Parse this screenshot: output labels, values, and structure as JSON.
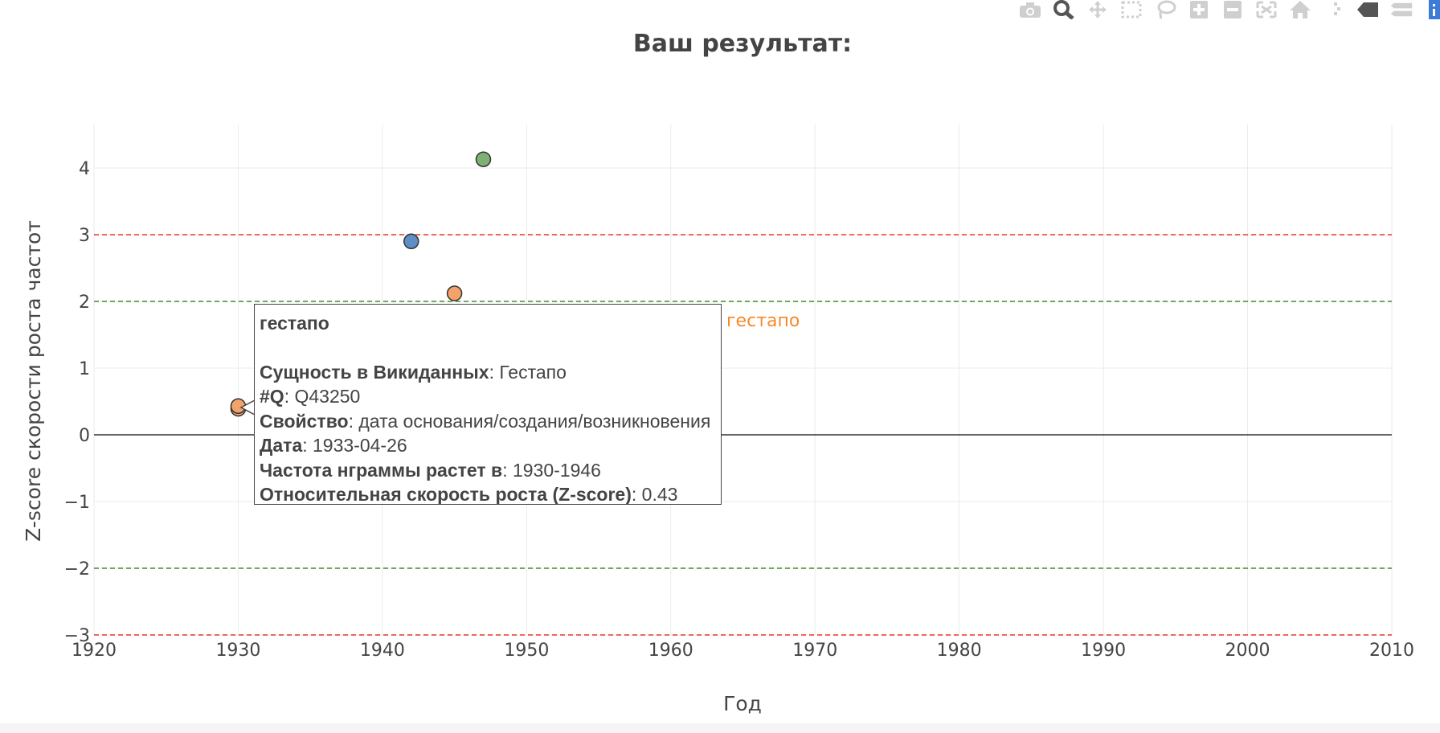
{
  "chart_data": {
    "type": "scatter",
    "title": "Ваш результат:",
    "xlabel": "Год",
    "ylabel": "Z-score скорости роста частот",
    "xlim": [
      1920,
      2010
    ],
    "ylim": [
      -3,
      4.6
    ],
    "x_ticks": [
      "1920",
      "1930",
      "1940",
      "1950",
      "1960",
      "1970",
      "1980",
      "1990",
      "2000",
      "2010"
    ],
    "y_ticks": [
      "4",
      "3",
      "2",
      "1",
      "0",
      "−1",
      "−2",
      "−3"
    ],
    "grid": true,
    "reference_lines": [
      {
        "y": 3,
        "color": "#e8352a",
        "style": "dashed"
      },
      {
        "y": 2,
        "color": "#3c8c2c",
        "style": "dashed"
      },
      {
        "y": 0,
        "color": "#333333",
        "style": "solid"
      },
      {
        "y": -2,
        "color": "#3c8c2c",
        "style": "dashed"
      },
      {
        "y": -3,
        "color": "#e8352a",
        "style": "dashed"
      }
    ],
    "points": [
      {
        "x": 1947,
        "y": 4.13,
        "color": "#7fb174"
      },
      {
        "x": 1942,
        "y": 2.9,
        "color": "#5f8ec5"
      },
      {
        "x": 1945,
        "y": 2.12,
        "color": "#f3a26a"
      },
      {
        "x": 1930,
        "y": 0.39,
        "color": "#e0a37a"
      },
      {
        "x": 1930,
        "y": 0.43,
        "color": "#f3a26a"
      }
    ],
    "hover_label": {
      "text": "гестапо",
      "color": "#f58a2a"
    }
  },
  "tooltip": {
    "title": "гестапо",
    "rows": [
      {
        "key": "Сущность в Викиданных",
        "value": "Гестапо"
      },
      {
        "key": "#Q",
        "value": "Q43250"
      },
      {
        "key": "Свойство",
        "value": "дата основания/создания/возникновения"
      },
      {
        "key": "Дата",
        "value": "1933-04-26"
      },
      {
        "key": "Частота нграммы растет в",
        "value": "1930-1946"
      },
      {
        "key": "Относительная скорость роста (Z-score)",
        "value": "0.43"
      }
    ]
  },
  "modebar": {
    "icons": [
      "camera-icon",
      "zoom-icon",
      "pan-icon",
      "box-select-icon",
      "lasso-icon",
      "zoom-in-icon",
      "zoom-out-icon",
      "autoscale-icon",
      "home-icon",
      "spike-lines-icon",
      "hover-closest-icon",
      "hover-compare-icon",
      "plotly-logo-icon"
    ]
  }
}
